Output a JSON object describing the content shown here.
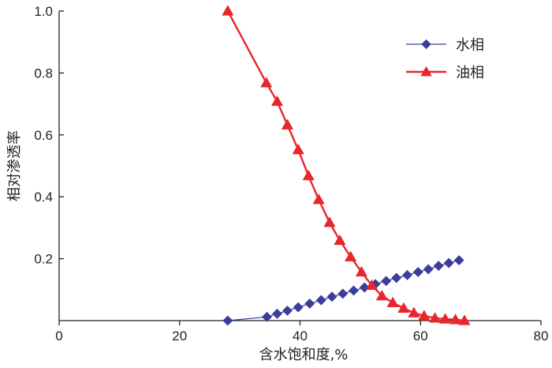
{
  "chart_data": {
    "type": "line",
    "xlabel": "含水饱和度,%",
    "ylabel": "相对渗透率",
    "xlim": [
      0,
      80
    ],
    "ylim": [
      0,
      1.0
    ],
    "x_ticks": [
      0,
      20,
      40,
      60,
      80
    ],
    "y_ticks": [
      0.2,
      0.4,
      0.6,
      0.8,
      1.0
    ],
    "x_tick_labels": [
      "0",
      "20",
      "40",
      "60",
      "80"
    ],
    "y_tick_labels": [
      "0.2",
      "0.4",
      "0.6",
      "0.8",
      "1.0"
    ],
    "grid": false,
    "legend_position": "top-right",
    "series": [
      {
        "name": "水相",
        "color": "#3a3d9a",
        "marker": "diamond",
        "points": [
          [
            28.0,
            0.0
          ],
          [
            34.5,
            0.012
          ],
          [
            36.2,
            0.022
          ],
          [
            37.9,
            0.032
          ],
          [
            39.7,
            0.043
          ],
          [
            41.6,
            0.055
          ],
          [
            43.5,
            0.066
          ],
          [
            45.3,
            0.077
          ],
          [
            47.1,
            0.087
          ],
          [
            48.9,
            0.097
          ],
          [
            50.7,
            0.107
          ],
          [
            52.5,
            0.118
          ],
          [
            54.3,
            0.128
          ],
          [
            56.0,
            0.138
          ],
          [
            57.8,
            0.147
          ],
          [
            59.6,
            0.157
          ],
          [
            61.3,
            0.166
          ],
          [
            63.0,
            0.177
          ],
          [
            64.7,
            0.186
          ],
          [
            66.4,
            0.195
          ]
        ]
      },
      {
        "name": "油相",
        "color": "#e8262c",
        "marker": "triangle",
        "points": [
          [
            28.0,
            1.0
          ],
          [
            34.4,
            0.768
          ],
          [
            36.2,
            0.708
          ],
          [
            37.9,
            0.632
          ],
          [
            39.7,
            0.552
          ],
          [
            41.4,
            0.468
          ],
          [
            43.1,
            0.391
          ],
          [
            44.9,
            0.317
          ],
          [
            46.6,
            0.259
          ],
          [
            48.4,
            0.206
          ],
          [
            50.2,
            0.157
          ],
          [
            51.9,
            0.114
          ],
          [
            53.6,
            0.08
          ],
          [
            55.4,
            0.058
          ],
          [
            57.2,
            0.04
          ],
          [
            58.9,
            0.025
          ],
          [
            60.6,
            0.015
          ],
          [
            62.4,
            0.008
          ],
          [
            64.1,
            0.005
          ],
          [
            65.8,
            0.003
          ],
          [
            67.3,
            0.0
          ]
        ]
      }
    ]
  }
}
